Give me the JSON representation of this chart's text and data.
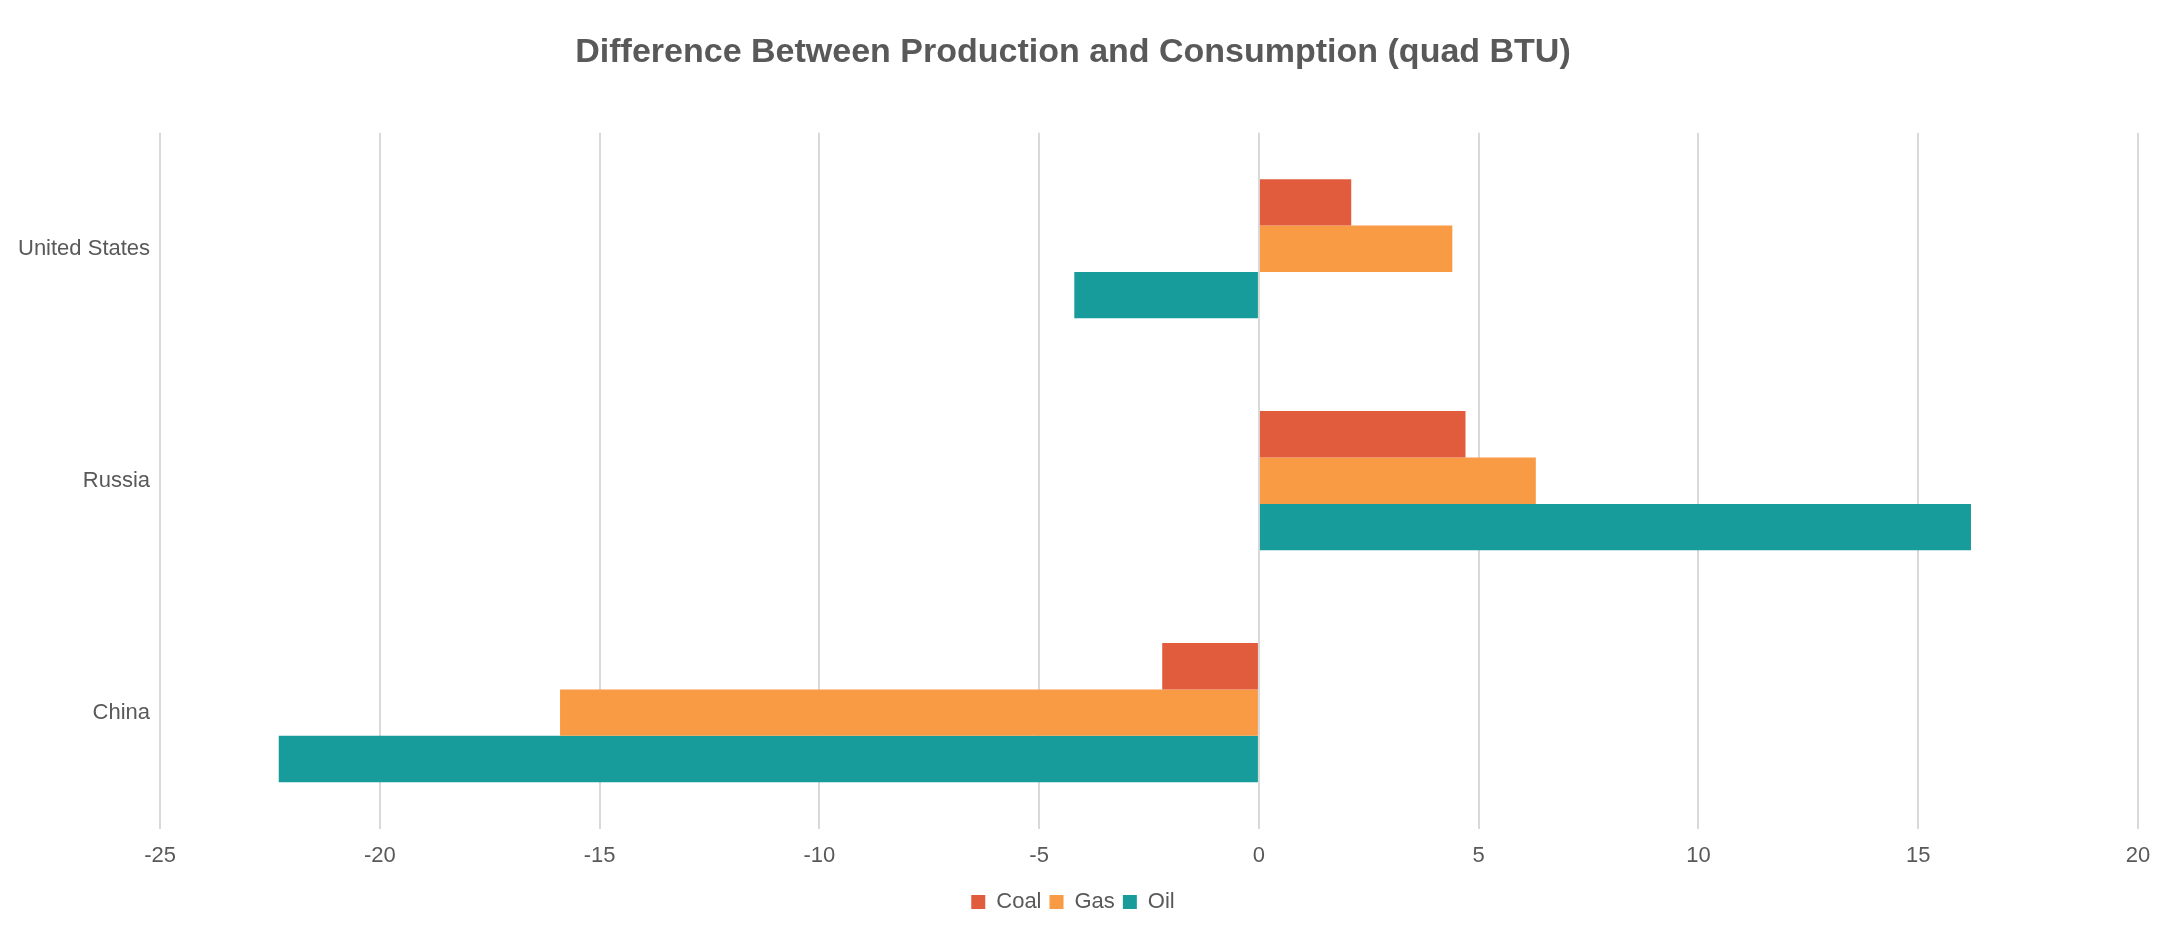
{
  "chart_data": {
    "type": "bar",
    "orientation": "horizontal",
    "title": "Difference Between Production and Consumption (quad BTU)",
    "categories": [
      "United States",
      "Russia",
      "China"
    ],
    "series": [
      {
        "name": "Coal",
        "color": "#e15c3c",
        "values": [
          2.1,
          4.7,
          -2.2
        ]
      },
      {
        "name": "Gas",
        "color": "#f99b45",
        "values": [
          4.4,
          6.3,
          -15.9
        ]
      },
      {
        "name": "Oil",
        "color": "#179c9b",
        "values": [
          -4.2,
          16.2,
          -22.3
        ]
      }
    ],
    "xlim": [
      -25,
      20
    ],
    "xticks": [
      -25,
      -20,
      -15,
      -10,
      -5,
      0,
      5,
      10,
      15,
      20
    ],
    "grid": "x",
    "legend": "bottom"
  }
}
